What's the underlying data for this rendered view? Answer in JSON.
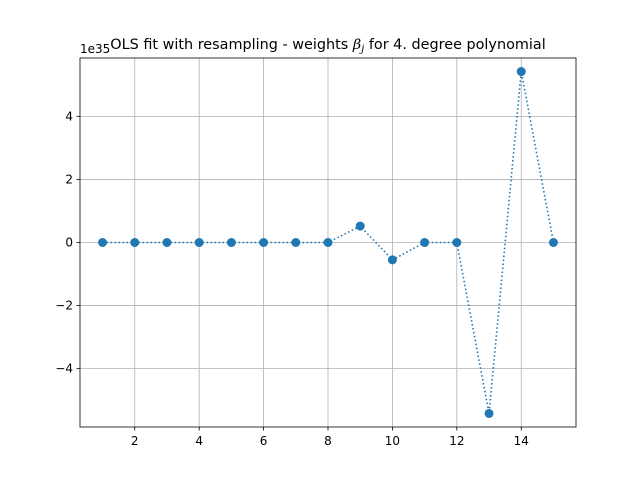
{
  "chart_data": {
    "type": "line",
    "title": {
      "prefix": "OLS fit with resampling - weights ",
      "symbol": "β",
      "subscript": "j",
      "suffix": " for 4. degree polynomial"
    },
    "xlabel": "",
    "ylabel": "",
    "y_offset_label": "1e35",
    "xlim": [
      0.3,
      15.7
    ],
    "ylim": [
      -5.85,
      5.85
    ],
    "x_ticks": [
      2,
      4,
      6,
      8,
      10,
      12,
      14
    ],
    "y_ticks": [
      -4,
      -2,
      0,
      2,
      4
    ],
    "y_tick_labels": [
      "−4",
      "−2",
      "0",
      "2",
      "4"
    ],
    "grid": true,
    "line_style": "dotted",
    "marker": "circle",
    "color": "#1f77b4",
    "x": [
      1,
      2,
      3,
      4,
      5,
      6,
      7,
      8,
      9,
      10,
      11,
      12,
      13,
      14,
      15
    ],
    "y": [
      0,
      0,
      0,
      0,
      0,
      0,
      0,
      0,
      0.52,
      -0.55,
      0,
      0,
      -5.42,
      5.42,
      0
    ]
  }
}
